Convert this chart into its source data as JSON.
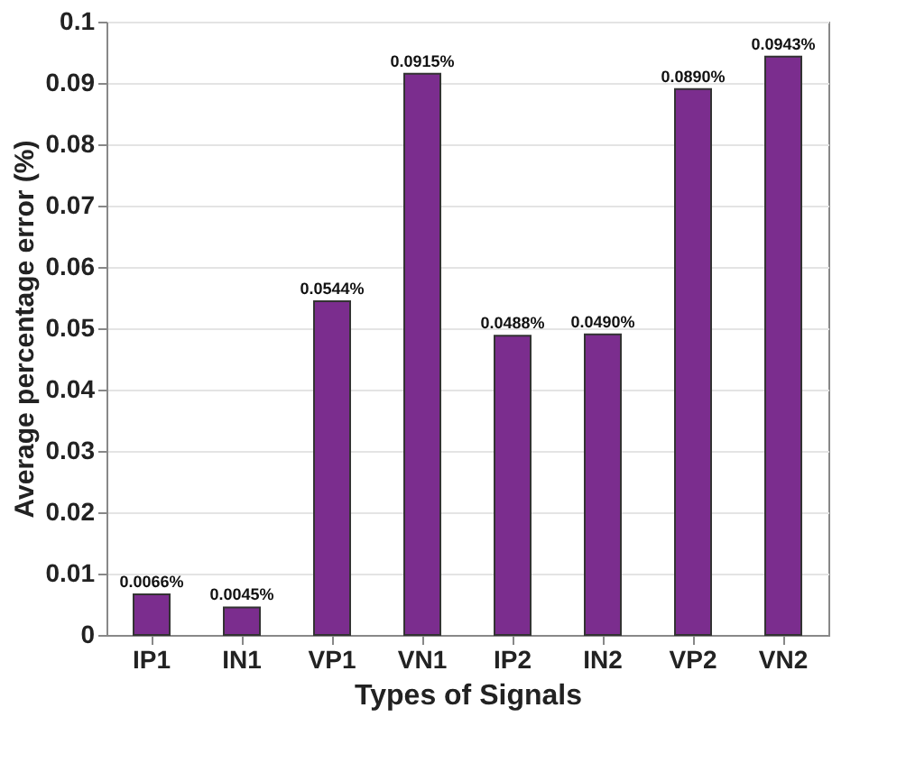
{
  "chart_data": {
    "type": "bar",
    "xlabel": "Types of Signals",
    "ylabel": "Average percentage error (%)",
    "categories": [
      "IP1",
      "IN1",
      "VP1",
      "VN1",
      "IP2",
      "IN2",
      "VP2",
      "VN2"
    ],
    "values": [
      0.0066,
      0.0045,
      0.0544,
      0.0915,
      0.0488,
      0.049,
      0.089,
      0.0943
    ],
    "value_labels": [
      "0.0066%",
      "0.0045%",
      "0.0544%",
      "0.0915%",
      "0.0488%",
      "0.0490%",
      "0.0890%",
      "0.0943%"
    ],
    "color": "#7b2d8e",
    "ylim": [
      0,
      0.1
    ],
    "yticks": [
      0,
      0.01,
      0.02,
      0.03,
      0.04,
      0.05,
      0.06,
      0.07,
      0.08,
      0.09,
      0.1
    ],
    "grid": "y"
  }
}
